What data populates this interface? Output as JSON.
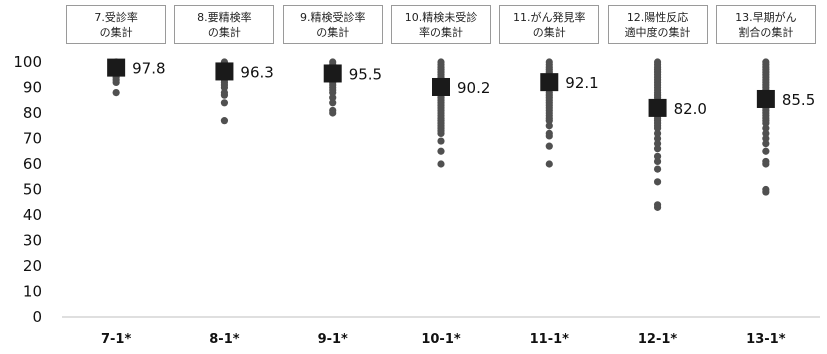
{
  "chart_data": {
    "type": "scatter",
    "title": "",
    "xlabel": "",
    "ylabel": "",
    "ylim": [
      0,
      100
    ],
    "y_ticks": [
      0,
      10,
      20,
      30,
      40,
      50,
      60,
      70,
      80,
      90,
      100
    ],
    "grid": false,
    "legend": "none",
    "categories": [
      "7-1*",
      "8-1*",
      "9-1*",
      "10-1*",
      "11-1*",
      "12-1*",
      "13-1*"
    ],
    "headers": [
      "7.受診率\nの集計",
      "8.要精検率\nの集計",
      "9.精検受診率\nの集計",
      "10.精検未受診\n率の集計",
      "11.がん発見率\nの集計",
      "12.陽性反応\n適中度の集計",
      "13.早期がん\n割合の集計"
    ],
    "means": [
      97.8,
      96.3,
      95.5,
      90.2,
      92.1,
      82.0,
      85.5
    ],
    "mean_labels": [
      "97.8",
      "96.3",
      "95.5",
      "90.2",
      "92.1",
      "82.0",
      "85.5"
    ],
    "points": [
      [
        100,
        99,
        98,
        97,
        96,
        95,
        94,
        93,
        92,
        88
      ],
      [
        100,
        99,
        98,
        97,
        96,
        95,
        94,
        93,
        92,
        91,
        90,
        88,
        87,
        84,
        77
      ],
      [
        100,
        99,
        98,
        97,
        96,
        95,
        94,
        93,
        92,
        91,
        90,
        89,
        88,
        86,
        84,
        81,
        80
      ],
      [
        100,
        99,
        98,
        97,
        96,
        95,
        94,
        93,
        92,
        91,
        90,
        89,
        88,
        87,
        86,
        85,
        84,
        83,
        82,
        81,
        80,
        79,
        78,
        77,
        76,
        75,
        74,
        73,
        72,
        69,
        65,
        60
      ],
      [
        100,
        99,
        98,
        97,
        96,
        95,
        94,
        93,
        92,
        91,
        90,
        89,
        88,
        87,
        86,
        85,
        84,
        83,
        82,
        81,
        80,
        79,
        78,
        77,
        75,
        72,
        71,
        67,
        60
      ],
      [
        100,
        99,
        98,
        97,
        96,
        95,
        94,
        93,
        92,
        91,
        90,
        89,
        88,
        87,
        86,
        85,
        84,
        83,
        82,
        81,
        80,
        79,
        78,
        77,
        76,
        75,
        74,
        72,
        70,
        68,
        66,
        63,
        61,
        58,
        53,
        44,
        43
      ],
      [
        100,
        99,
        98,
        97,
        96,
        95,
        94,
        93,
        92,
        91,
        90,
        89,
        88,
        87,
        86,
        85,
        84,
        83,
        82,
        81,
        80,
        79,
        78,
        77,
        76,
        74,
        72,
        70,
        68,
        65,
        61,
        60,
        50,
        49
      ]
    ],
    "colors": {
      "points": "#505050",
      "mean": "#1a1a1a",
      "axis": "#bfbfbf",
      "header_border": "#9a9a9a"
    }
  }
}
